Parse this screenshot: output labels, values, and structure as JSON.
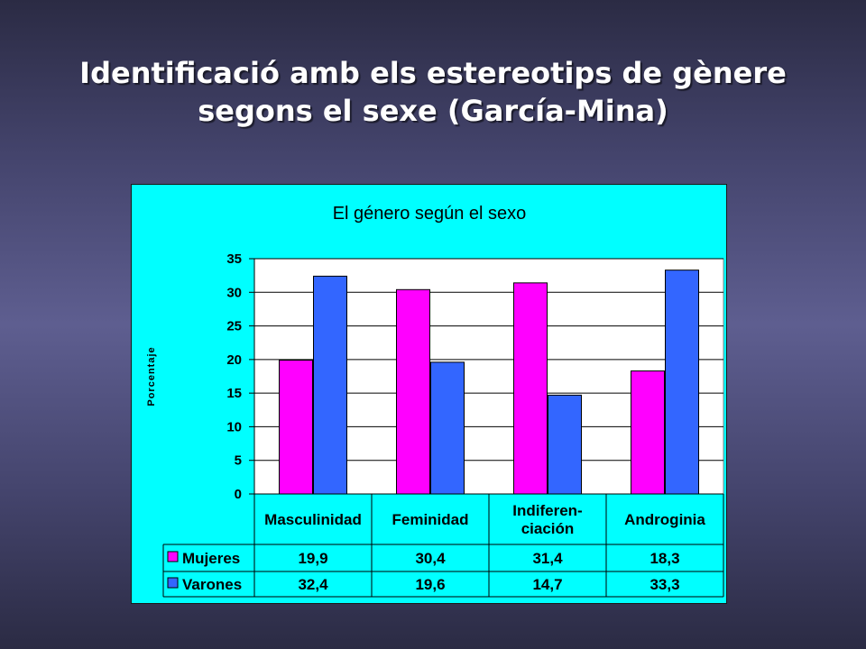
{
  "slide": {
    "title_line1": "Identificació amb els estereotips de gènere",
    "title_line2": "segons el sexe (García-Mina)"
  },
  "chart_data": {
    "type": "bar",
    "title": "El género según el sexo",
    "ylabel": "Porcentaje",
    "xlabel": "",
    "ylim": [
      0,
      35
    ],
    "yticks": [
      0,
      5,
      10,
      15,
      20,
      25,
      30,
      35
    ],
    "categories": [
      [
        "Masculinidad"
      ],
      [
        "Feminidad"
      ],
      [
        "Indiferen-",
        "ciación"
      ],
      [
        "Androginia"
      ]
    ],
    "series": [
      {
        "name": "Mujeres",
        "color": "#ff00ff",
        "values": [
          19.9,
          30.4,
          31.4,
          18.3
        ],
        "labels": [
          "19,9",
          "30,4",
          "31,4",
          "18,3"
        ]
      },
      {
        "name": "Varones",
        "color": "#3366ff",
        "values": [
          32.4,
          19.6,
          14.7,
          33.3
        ],
        "labels": [
          "32,4",
          "19,6",
          "14,7",
          "33,3"
        ]
      }
    ],
    "grid": true,
    "legend": "data-table"
  }
}
